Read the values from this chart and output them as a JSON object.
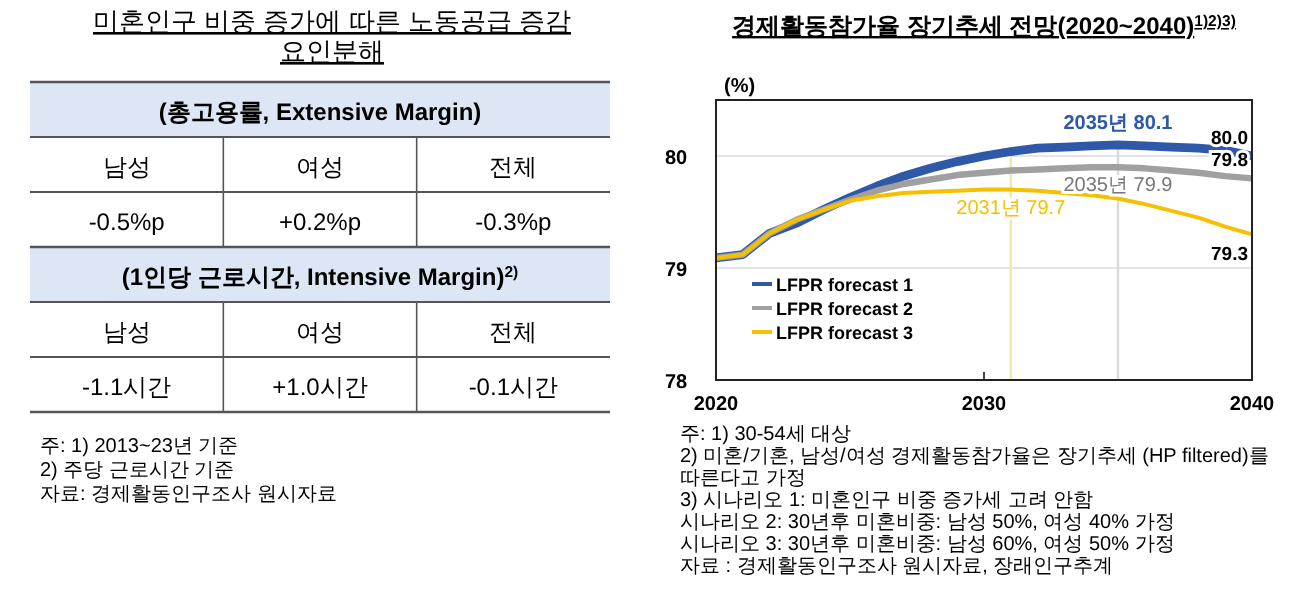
{
  "chart_data": [
    {
      "type": "other",
      "title": "미혼인구 비중 증가에 따른 노동공급 증감 요인분해",
      "annotations": [
        "(총고용률, Extensive Margin)",
        "남성",
        "여성",
        "전체",
        "-0.5%p",
        "+0.2%p",
        "-0.3%p",
        "(1인당 근로시간, Intensive Margin)$^{2)}$",
        "남성",
        "여성",
        "전체",
        "-1.1시간",
        "+1.0시간",
        "-0.1시간",
        "주: 1) 2013~23년 기준",
        "2) 주당 근로시간 기준",
        "자료: 경제활동인구조사 원시자료"
      ]
    },
    {
      "type": "line",
      "title": "경제활동참가율 장기추세 전망(2020~2040)$^{1)2)3)}$",
      "ylabel": "(%)",
      "x": [
        2020,
        2021,
        2022,
        2023,
        2024,
        2025,
        2026,
        2027,
        2028,
        2029,
        2030,
        2031,
        2032,
        2033,
        2034,
        2035,
        2036,
        2037,
        2038,
        2039,
        2040
      ],
      "series": [
        {
          "name": "LFPR forecast 1",
          "color": "#2f58a8",
          "values": [
            79.09,
            79.12,
            79.31,
            79.4,
            79.52,
            79.63,
            79.73,
            79.82,
            79.89,
            79.95,
            80.0,
            80.04,
            80.07,
            80.08,
            80.09,
            80.1,
            80.09,
            80.08,
            80.07,
            80.05,
            80.0
          ]
        },
        {
          "name": "LFPR forecast 2",
          "color": "#a0a0a0",
          "values": [
            79.09,
            79.12,
            79.31,
            79.43,
            79.52,
            79.61,
            79.69,
            79.75,
            79.79,
            79.83,
            79.85,
            79.87,
            79.88,
            79.89,
            79.9,
            79.9,
            79.89,
            79.87,
            79.85,
            79.82,
            79.8
          ]
        },
        {
          "name": "LFPR forecast 3",
          "color": "#f5c000",
          "values": [
            79.09,
            79.12,
            79.31,
            79.43,
            79.52,
            79.6,
            79.64,
            79.67,
            79.68,
            79.69,
            79.7,
            79.7,
            79.69,
            79.67,
            79.65,
            79.62,
            79.57,
            79.51,
            79.45,
            79.37,
            79.3
          ]
        }
      ],
      "xlim": [
        2020,
        2040
      ],
      "xticks": [
        2020,
        2030,
        2040
      ],
      "ylim": [
        78,
        80.5
      ],
      "yticks": [
        78,
        79,
        80
      ],
      "grid": "y",
      "legend": "bottom left",
      "marker": "none",
      "line_style": "solid",
      "ref_lines": [
        {
          "axis": "x",
          "value": 2031,
          "color": "#f5e6a8"
        },
        {
          "axis": "x",
          "value": 2035,
          "color": "#d9d9d9"
        }
      ],
      "annotations": [
        {
          "text": "2035년 80.1",
          "x": 2035,
          "y": 80.1
        },
        {
          "text": "2035년 79.9",
          "x": 2035,
          "y": 79.9
        },
        {
          "text": "2031년 79.7",
          "x": 2031,
          "y": 79.7
        },
        {
          "text": "80.0",
          "x": 2040,
          "y": 80.0
        },
        {
          "text": "79.8",
          "x": 2040,
          "y": 79.8
        },
        {
          "text": "79.3",
          "x": 2040,
          "y": 79.3
        },
        "주: 1) 30-54세 대상",
        "2) 미혼/기혼, 남성/여성 경제활동참가율은 장기추세 (HP filtered)를 따른다고 가정",
        "3) 시나리오 1: 미혼인구 비중 증가세 고려 안함",
        "시나리오 2: 30년후 미혼비중: 남성 50%, 여성 40% 가정",
        "시나리오 3: 30년후 미혼비중: 남성 60%, 여성 50% 가정",
        "자료 : 경제활동인구조사 원시자료, 장래인구추계"
      ]
    }
  ]
}
